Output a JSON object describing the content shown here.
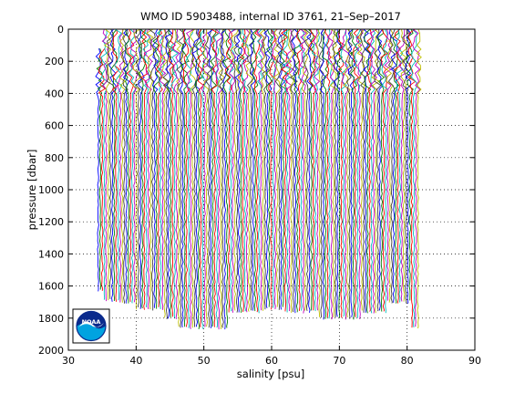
{
  "chart_data": {
    "type": "line",
    "title": "WMO ID 5903488, internal ID 3761, 21–Sep–2017",
    "xlabel": "salinity [psu]",
    "ylabel": "pressure [dbar]",
    "xlim": [
      30,
      90
    ],
    "ylim": [
      0,
      2000
    ],
    "y_reversed": true,
    "xticks": [
      "30",
      "40",
      "50",
      "60",
      "70",
      "80",
      "90"
    ],
    "yticks": [
      "0",
      "200",
      "400",
      "600",
      "800",
      "1000",
      "1200",
      "1400",
      "1600",
      "1800",
      "2000"
    ],
    "grid": true,
    "series_colors": [
      "#0000ff",
      "#008000",
      "#ff0000",
      "#00bfbf",
      "#bf00bf",
      "#bfbf00",
      "#404040"
    ],
    "profile_x_range": [
      34.4,
      81.6
    ],
    "profile_count": 160,
    "profile_spacing_psu": 0.3,
    "profile_noise_psu": 0.35,
    "profile_bottom_pressures_dbar": [
      {
        "x_range": [
          34.4,
          35.0
        ],
        "max_pressure": 1630
      },
      {
        "x_range": [
          35.0,
          37.5
        ],
        "max_pressure": 1690
      },
      {
        "x_range": [
          37.5,
          40.0
        ],
        "max_pressure": 1700
      },
      {
        "x_range": [
          40.0,
          44.0
        ],
        "max_pressure": 1740
      },
      {
        "x_range": [
          44.0,
          46.0
        ],
        "max_pressure": 1800
      },
      {
        "x_range": [
          46.0,
          53.5
        ],
        "max_pressure": 1860
      },
      {
        "x_range": [
          53.5,
          59.0
        ],
        "max_pressure": 1760
      },
      {
        "x_range": [
          59.0,
          62.0
        ],
        "max_pressure": 1740
      },
      {
        "x_range": [
          62.0,
          67.0
        ],
        "max_pressure": 1760
      },
      {
        "x_range": [
          67.0,
          73.0
        ],
        "max_pressure": 1800
      },
      {
        "x_range": [
          73.0,
          77.0
        ],
        "max_pressure": 1760
      },
      {
        "x_range": [
          77.0,
          80.5
        ],
        "max_pressure": 1700
      },
      {
        "x_range": [
          80.5,
          81.6
        ],
        "max_pressure": 1860
      }
    ],
    "profile_top_pressures_dbar": [
      {
        "x_range": [
          34.4,
          35.0
        ],
        "min_pressure": 120
      },
      {
        "x_range": [
          35.0,
          81.6
        ],
        "min_pressure": 0
      }
    ]
  },
  "logo": {
    "text": "NOAA",
    "colors": {
      "sky": "#0a2a8c",
      "sea": "#00a3e0",
      "bird": "#ffffff"
    }
  }
}
